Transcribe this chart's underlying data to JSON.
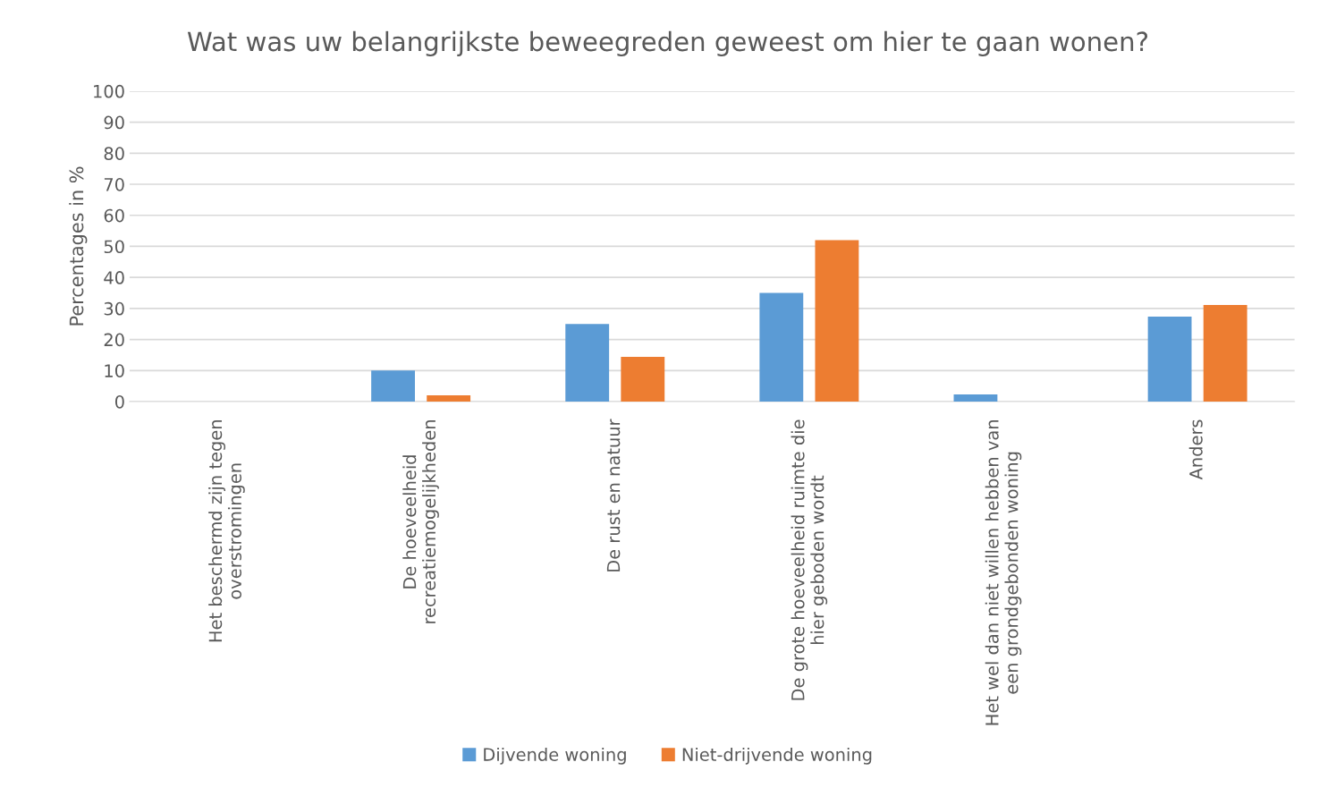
{
  "chart_data": {
    "type": "bar",
    "title": "Wat was uw belangrijkste beweegreden geweest om hier te gaan wonen?",
    "ylabel": "Percentages in %",
    "categories": [
      "Het beschermd zijn tegen\noverstromingen",
      "De hoeveelheid\nrecreatiemogelijkheden",
      "De rust en natuur",
      "De grote hoeveelheid ruimte die\nhier geboden wordt",
      "Het wel dan niet willen hebben van\neen grondgebonden woning",
      "Anders"
    ],
    "series": [
      {
        "name": "Dijvende woning",
        "color": "#5b9bd5",
        "values": [
          0,
          10,
          25,
          35,
          2.3,
          27.4
        ]
      },
      {
        "name": "Niet-drijvende woning",
        "color": "#ed7d31",
        "values": [
          0,
          2,
          14.4,
          52,
          0,
          31.1
        ]
      }
    ],
    "ylim": [
      0,
      100
    ],
    "yticks": [
      0,
      10,
      20,
      30,
      40,
      50,
      60,
      70,
      80,
      90,
      100
    ],
    "grid": "y",
    "legend": "bottom"
  }
}
